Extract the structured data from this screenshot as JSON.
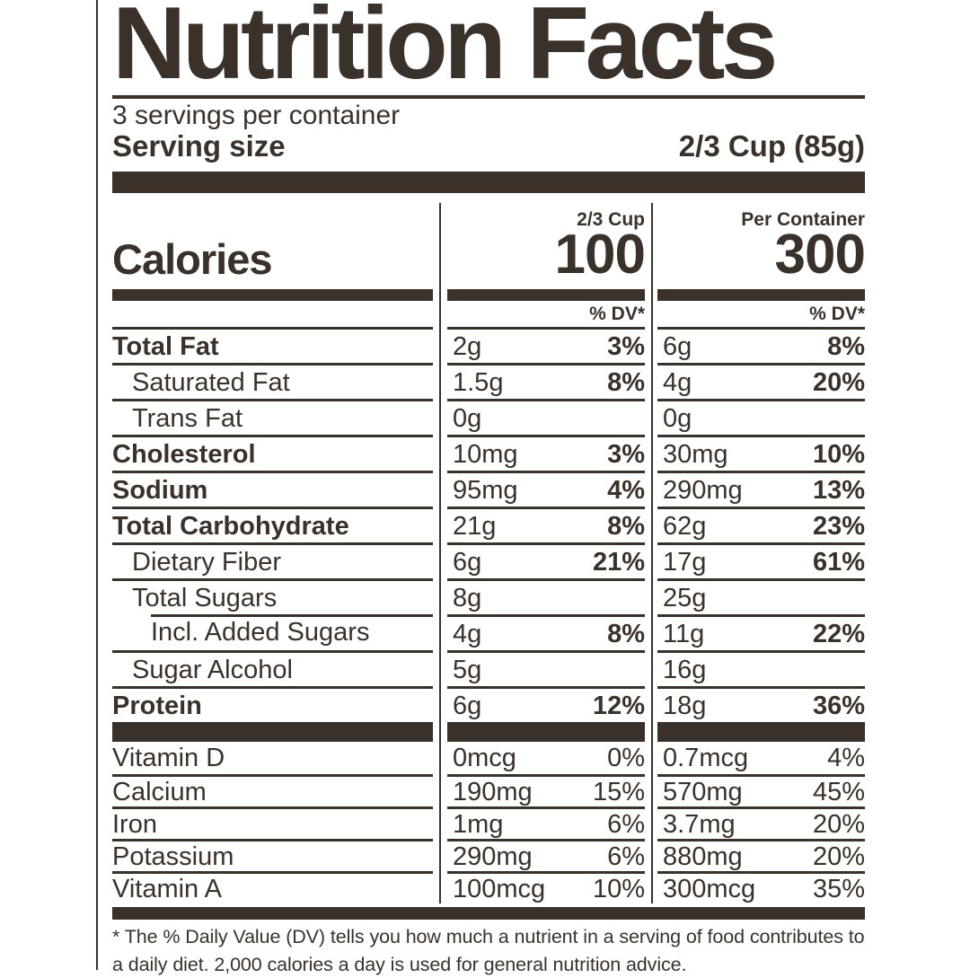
{
  "label": {
    "ink_color": "#3a312b",
    "title": "Nutrition Facts",
    "servings_per_container": "3 servings per container",
    "serving_size_label": "Serving size",
    "serving_size_value": "2/3 Cup (85g)",
    "calories": {
      "label": "Calories",
      "per_serving_header": "2/3 Cup",
      "per_container_header": "Per Container",
      "per_serving_value": "100",
      "per_container_value": "300"
    },
    "dv_header": "% DV*",
    "rows": [
      {
        "name": "Total Fat",
        "bold": true,
        "indent": 0,
        "c1_amount": "2g",
        "c1_dv": "3%",
        "c2_amount": "6g",
        "c2_dv": "8%",
        "dv_bold": true
      },
      {
        "name": "Saturated Fat",
        "bold": false,
        "indent": 1,
        "c1_amount": "1.5g",
        "c1_dv": "8%",
        "c2_amount": "4g",
        "c2_dv": "20%",
        "dv_bold": true
      },
      {
        "name": "Trans Fat",
        "bold": false,
        "indent": 1,
        "c1_amount": "0g",
        "c1_dv": "",
        "c2_amount": "0g",
        "c2_dv": "",
        "dv_bold": false
      },
      {
        "name": "Cholesterol",
        "bold": true,
        "indent": 0,
        "c1_amount": "10mg",
        "c1_dv": "3%",
        "c2_amount": "30mg",
        "c2_dv": "10%",
        "dv_bold": true
      },
      {
        "name": "Sodium",
        "bold": true,
        "indent": 0,
        "c1_amount": "95mg",
        "c1_dv": "4%",
        "c2_amount": "290mg",
        "c2_dv": "13%",
        "dv_bold": true
      },
      {
        "name": "Total Carbohydrate",
        "bold": true,
        "indent": 0,
        "c1_amount": "21g",
        "c1_dv": "8%",
        "c2_amount": "62g",
        "c2_dv": "23%",
        "dv_bold": true
      },
      {
        "name": "Dietary Fiber",
        "bold": false,
        "indent": 1,
        "c1_amount": "6g",
        "c1_dv": "21%",
        "c2_amount": "17g",
        "c2_dv": "61%",
        "dv_bold": true
      },
      {
        "name": "Total Sugars",
        "bold": false,
        "indent": 1,
        "c1_amount": "8g",
        "c1_dv": "",
        "c2_amount": "25g",
        "c2_dv": "",
        "dv_bold": false
      },
      {
        "name": "Incl. Added Sugars",
        "bold": false,
        "indent": 2,
        "c1_amount": "4g",
        "c1_dv": "8%",
        "c2_amount": "11g",
        "c2_dv": "22%",
        "dv_bold": true,
        "indented_rule": true
      },
      {
        "name": "Sugar Alcohol",
        "bold": false,
        "indent": 1,
        "c1_amount": "5g",
        "c1_dv": "",
        "c2_amount": "16g",
        "c2_dv": "",
        "dv_bold": false
      },
      {
        "name": "Protein",
        "bold": true,
        "indent": 0,
        "c1_amount": "6g",
        "c1_dv": "12%",
        "c2_amount": "18g",
        "c2_dv": "36%",
        "dv_bold": true
      }
    ],
    "vitamins": [
      {
        "name": "Vitamin D",
        "c1_amount": "0mcg",
        "c1_dv": "0%",
        "c2_amount": "0.7mcg",
        "c2_dv": "4%"
      },
      {
        "name": "Calcium",
        "c1_amount": "190mg",
        "c1_dv": "15%",
        "c2_amount": "570mg",
        "c2_dv": "45%"
      },
      {
        "name": "Iron",
        "c1_amount": "1mg",
        "c1_dv": "6%",
        "c2_amount": "3.7mg",
        "c2_dv": "20%"
      },
      {
        "name": "Potassium",
        "c1_amount": "290mg",
        "c1_dv": "6%",
        "c2_amount": "880mg",
        "c2_dv": "20%"
      },
      {
        "name": "Vitamin A",
        "c1_amount": "100mcg",
        "c1_dv": "10%",
        "c2_amount": "300mcg",
        "c2_dv": "35%"
      }
    ],
    "footnote": "* The % Daily Value (DV) tells you how much a nutrient in a serving of food contributes to a daily diet. 2,000 calories a day is used for general nutrition advice."
  }
}
